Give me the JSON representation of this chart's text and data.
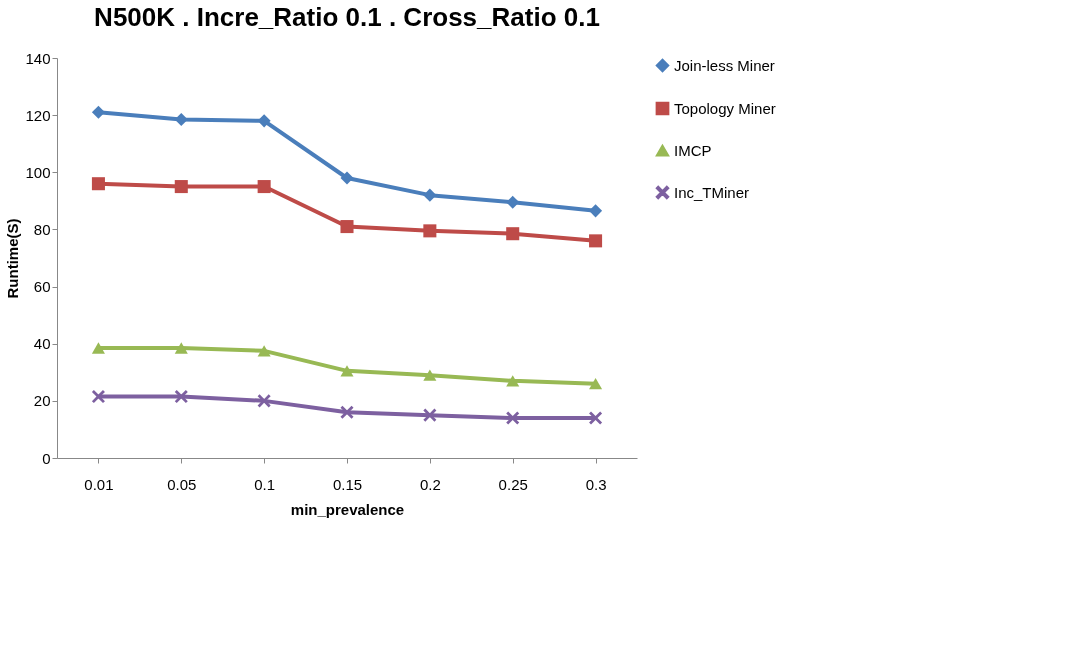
{
  "chart_data": {
    "type": "line",
    "title": "N500K . Incre_Ratio 0.1 . Cross_Ratio 0.1",
    "xlabel": "min_prevalence",
    "ylabel": "Runtime(S)",
    "categories": [
      "0.01",
      "0.05",
      "0.1",
      "0.15",
      "0.2",
      "0.25",
      "0.3"
    ],
    "series": [
      {
        "name": "Join-less Miner",
        "color": "#4a7ebb",
        "marker": "diamond",
        "values": [
          121,
          118.5,
          118,
          98,
          92,
          89.5,
          86.5
        ]
      },
      {
        "name": "Topology Miner",
        "color": "#be4b48",
        "marker": "square",
        "values": [
          96,
          95,
          95,
          81,
          79.5,
          78.5,
          76
        ]
      },
      {
        "name": "IMCP",
        "color": "#98b954",
        "marker": "triangle",
        "values": [
          38.5,
          38.5,
          37.5,
          30.5,
          29,
          27,
          26
        ]
      },
      {
        "name": "Inc_TMiner",
        "color": "#7d60a0",
        "marker": "cross",
        "values": [
          21.5,
          21.5,
          20,
          16,
          15,
          14,
          14
        ]
      }
    ],
    "ylim": [
      0,
      140
    ],
    "yticks": [
      0,
      20,
      40,
      60,
      80,
      100,
      120,
      140
    ],
    "grid": false,
    "line_style": "solid",
    "legend": "right"
  }
}
